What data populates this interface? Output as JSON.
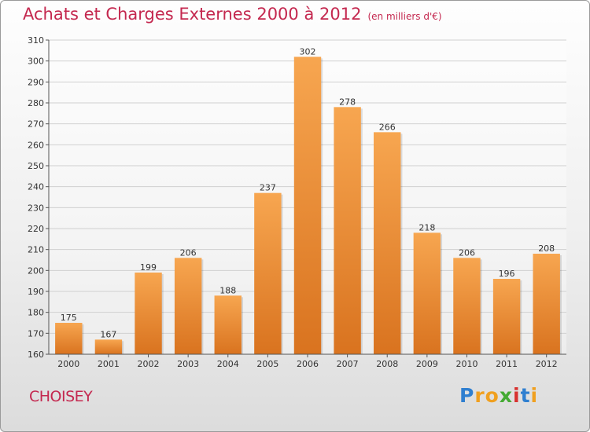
{
  "chart_data": {
    "type": "bar",
    "title": "Achats et Charges Externes 2000 à 2012",
    "unit": "(en milliers d'€)",
    "categories": [
      "2000",
      "2001",
      "2002",
      "2003",
      "2004",
      "2005",
      "2006",
      "2007",
      "2008",
      "2009",
      "2010",
      "2011",
      "2012"
    ],
    "values": [
      175,
      167,
      199,
      206,
      188,
      237,
      302,
      278,
      266,
      218,
      206,
      196,
      208
    ],
    "ylim": [
      160,
      310
    ],
    "yticks": [
      160,
      170,
      180,
      190,
      200,
      210,
      220,
      230,
      240,
      250,
      260,
      270,
      280,
      290,
      300,
      310
    ],
    "grid": true,
    "bar_color_top": "#f7a650",
    "bar_color_bottom": "#d9731f",
    "grid_color": "#d0d0d0"
  },
  "place_name": "CHOISEY",
  "logo": {
    "letters": [
      "P",
      "r",
      "o",
      "x",
      "i",
      "t",
      "i"
    ],
    "colors": [
      "#2f7fd0",
      "#f0a020",
      "#f0a020",
      "#44aa33",
      "#d8312f",
      "#2f7fd0",
      "#f0a020"
    ]
  }
}
